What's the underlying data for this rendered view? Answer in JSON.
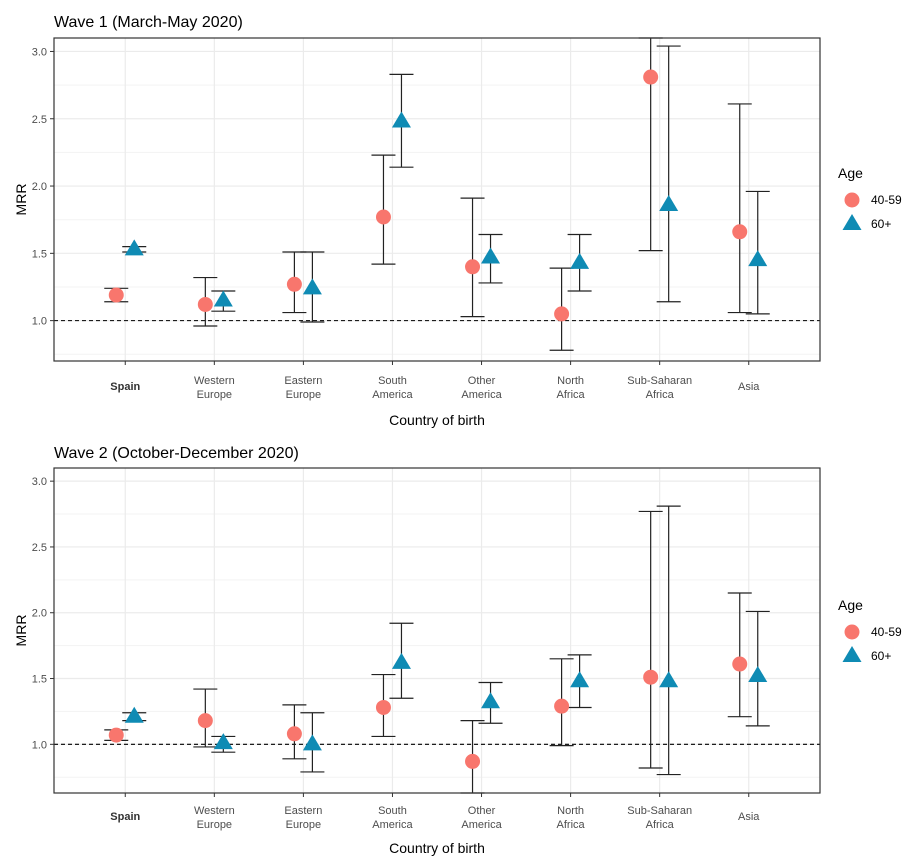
{
  "chart_data": [
    {
      "type": "scatter",
      "title": "Wave 1 (March-May 2020)",
      "xlabel": "Country of birth",
      "ylabel": "MRR",
      "categories": [
        "Spain",
        "Western\nEurope",
        "Eastern\nEurope",
        "South\nAmerica",
        "Other\nAmerica",
        "North\nAfrica",
        "Sub-Saharan\nAfrica",
        "Asia"
      ],
      "bold_categories": [
        "Spain"
      ],
      "ylim": [
        0.7,
        3.1
      ],
      "yticks": [
        1.0,
        1.5,
        2.0,
        2.5,
        3.0
      ],
      "yticklabels": [
        "1.0",
        "1.5",
        "2.0",
        "2.5",
        "3.0"
      ],
      "reference_line": 1.0,
      "grid": true,
      "legend": {
        "title": "Age",
        "position": "right"
      },
      "series": [
        {
          "name": "40-59",
          "shape": "circle",
          "color": "#f8766d",
          "values": [
            1.19,
            1.12,
            1.27,
            1.77,
            1.4,
            1.05,
            2.81,
            1.66
          ],
          "lower": [
            1.14,
            0.96,
            1.06,
            1.42,
            1.03,
            0.78,
            1.52,
            1.06
          ],
          "upper": [
            1.24,
            1.32,
            1.51,
            2.23,
            1.91,
            1.39,
            3.1,
            2.61
          ]
        },
        {
          "name": "60+",
          "shape": "triangle",
          "color": "#0f8bb4",
          "values": [
            1.53,
            1.15,
            1.24,
            2.48,
            1.47,
            1.43,
            1.86,
            1.45
          ],
          "lower": [
            1.51,
            1.07,
            0.99,
            2.14,
            1.28,
            1.22,
            1.14,
            1.05
          ],
          "upper": [
            1.55,
            1.22,
            1.51,
            2.83,
            1.64,
            1.64,
            3.04,
            1.96
          ]
        }
      ]
    },
    {
      "type": "scatter",
      "title": "Wave 2 (October-December 2020)",
      "xlabel": "Country of birth",
      "ylabel": "MRR",
      "categories": [
        "Spain",
        "Western\nEurope",
        "Eastern\nEurope",
        "South\nAmerica",
        "Other\nAmerica",
        "North\nAfrica",
        "Sub-Saharan\nAfrica",
        "Asia"
      ],
      "bold_categories": [
        "Spain"
      ],
      "ylim": [
        0.63,
        3.1
      ],
      "yticks": [
        1.0,
        1.5,
        2.0,
        2.5,
        3.0
      ],
      "yticklabels": [
        "1.0",
        "1.5",
        "2.0",
        "2.5",
        "3.0"
      ],
      "reference_line": 1.0,
      "grid": true,
      "legend": {
        "title": "Age",
        "position": "right"
      },
      "series": [
        {
          "name": "40-59",
          "shape": "circle",
          "color": "#f8766d",
          "values": [
            1.07,
            1.18,
            1.08,
            1.28,
            0.87,
            1.29,
            1.51,
            1.61
          ],
          "lower": [
            1.03,
            0.98,
            0.89,
            1.06,
            0.63,
            0.99,
            0.82,
            1.21
          ],
          "upper": [
            1.11,
            1.42,
            1.3,
            1.53,
            1.18,
            1.65,
            2.77,
            2.15
          ]
        },
        {
          "name": "60+",
          "shape": "triangle",
          "color": "#0f8bb4",
          "values": [
            1.21,
            1.01,
            1.0,
            1.62,
            1.32,
            1.48,
            1.48,
            1.52
          ],
          "lower": [
            1.18,
            0.94,
            0.79,
            1.35,
            1.16,
            1.28,
            0.77,
            1.14
          ],
          "upper": [
            1.24,
            1.06,
            1.24,
            1.92,
            1.47,
            1.68,
            2.81,
            2.01
          ]
        }
      ]
    }
  ]
}
